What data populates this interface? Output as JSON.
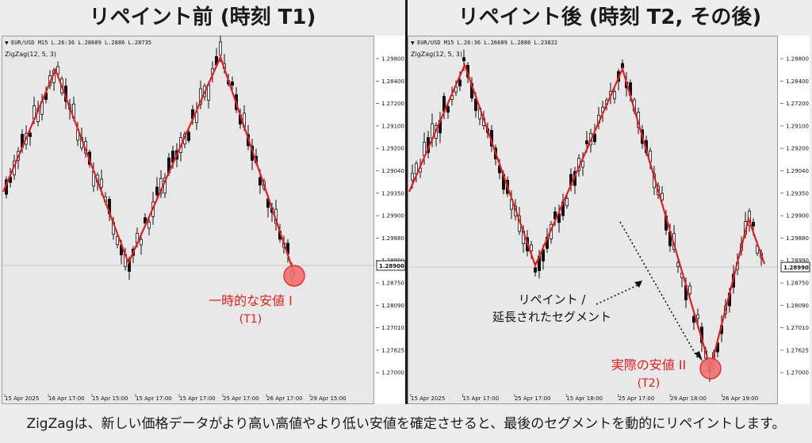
{
  "left": {
    "title": "リペイント前 (時刻 T1)",
    "symbol_line": "EUR/USD M15  L.26:36  L.28609  L.2886  L.28735",
    "indicator": "ZigZag(12, 5, 3)",
    "price_labels": [
      "1.29800",
      "1.28400",
      "1.27200",
      "1.29100",
      "1.29200",
      "1.29040",
      "1.29350",
      "1.29900",
      "1.29880",
      "1.28900",
      "1.28750",
      "1.28090",
      "1.27010",
      "1.27825",
      "1.27000"
    ],
    "current_price": "1.28900",
    "time_labels": [
      "15 Apr 2025",
      "16 Apr 17:00",
      "15 Apr 15:00",
      "15 Apr 17:00",
      "15 Apr 17:00",
      "25 Apr 17:00",
      "26 Apr 17:00",
      "29 Apr 15:00"
    ],
    "annotation_main": "一時的な安値 I",
    "annotation_sub": "(T1)"
  },
  "right": {
    "title": "リペイント後 (時刻 T2, その後)",
    "symbol_line": "EUR/USD M15  L.26:36  L.26609  L.2886  L.23822",
    "indicator": "ZigZag(12, 5, 3)",
    "price_labels": [
      "1.28800",
      "1.28400",
      "1.27200",
      "1.29100",
      "1.29200",
      "1.29040",
      "1.29350",
      "1.29900",
      "1.29880",
      "1.28990",
      "1.28750",
      "1.28090",
      "1.27010",
      "1.27625",
      "1.27000"
    ],
    "current_price": "1.28990",
    "time_labels": [
      "15 Apr 2025",
      "15 Apr 17:00",
      "25 Apr 17:00",
      "15 Apr 18:00",
      "25 Apr 17:00",
      "29 Apr 18:00",
      "26 Apr 19:00"
    ],
    "note_line1": "リペイント /",
    "note_line2": "延長されたセグメント",
    "annotation_main": "実際の安値 II",
    "annotation_sub": "(T2)"
  },
  "footer": "ZigZagは、新しい価格データがより高い高値やより低い安値を確定させると、最後のセグメントを動的にリペイントします。",
  "colors": {
    "zigzag": "#e02020",
    "marker_fill": "#f07070",
    "annotation_text": "#e02020",
    "candle_dark": "#111111",
    "bull_candle_body": "#ffffff"
  }
}
